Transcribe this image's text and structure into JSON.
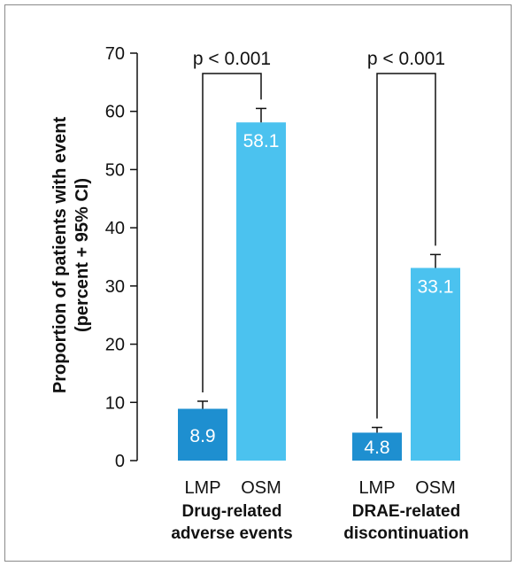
{
  "chart_data": {
    "type": "bar",
    "ylabel_line1": "Proportion of patients with event",
    "ylabel_line2": "(percent + 95% CI)",
    "ylim": [
      0,
      70
    ],
    "yticks": [
      0,
      10,
      20,
      30,
      40,
      50,
      60,
      70
    ],
    "grid": false,
    "groups": [
      {
        "name_line1": "Drug-related",
        "name_line2": "adverse events",
        "p_value": "p < 0.001",
        "bars": [
          {
            "category": "LMP",
            "value": 8.9,
            "label": "8.9",
            "ci_upper": 10.2,
            "color": "#1e8fd0"
          },
          {
            "category": "OSM",
            "value": 58.1,
            "label": "58.1",
            "ci_upper": 60.5,
            "color": "#4bc2ef"
          }
        ]
      },
      {
        "name_line1": "DRAE-related",
        "name_line2": "discontinuation",
        "p_value": "p < 0.001",
        "bars": [
          {
            "category": "LMP",
            "value": 4.8,
            "label": "4.8",
            "ci_upper": 5.7,
            "color": "#1e8fd0"
          },
          {
            "category": "OSM",
            "value": 33.1,
            "label": "33.1",
            "ci_upper": 35.4,
            "color": "#4bc2ef"
          }
        ]
      }
    ]
  }
}
